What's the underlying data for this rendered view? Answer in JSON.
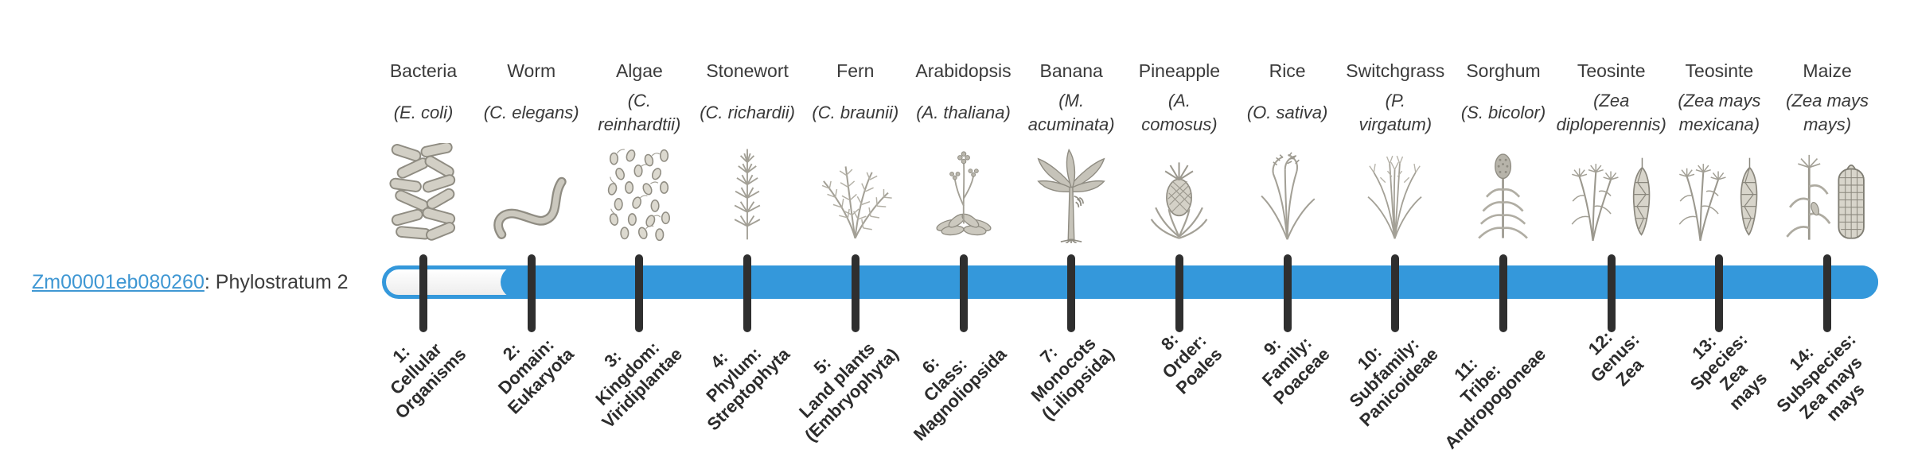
{
  "gene": {
    "id": "Zm00001eb080260",
    "separator": ": ",
    "status_text": "Phylostratum 2",
    "phylostratum": 2
  },
  "colors": {
    "accent_blue": "#3498db",
    "tick_dark": "#2f2f2f",
    "link_blue": "#3f97d3",
    "text_dark": "#3a3a3a",
    "art_gray": "#a3a096"
  },
  "organisms": [
    {
      "common": "Bacteria",
      "sci_lines": [
        "(E. coli)"
      ],
      "art": "bacteria"
    },
    {
      "common": "Worm",
      "sci_lines": [
        "(C. elegans)"
      ],
      "art": "worm"
    },
    {
      "common": "Algae",
      "sci_lines": [
        "(C.",
        "reinhardtii)"
      ],
      "art": "algae"
    },
    {
      "common": "Stonewort",
      "sci_lines": [
        "(C. richardii)"
      ],
      "art": "stonewort"
    },
    {
      "common": "Fern",
      "sci_lines": [
        "(C. braunii)"
      ],
      "art": "fern"
    },
    {
      "common": "Arabidopsis",
      "sci_lines": [
        "(A. thaliana)"
      ],
      "art": "arabidopsis"
    },
    {
      "common": "Banana",
      "sci_lines": [
        "(M.",
        "acuminata)"
      ],
      "art": "banana"
    },
    {
      "common": "Pineapple",
      "sci_lines": [
        "(A.",
        "comosus)"
      ],
      "art": "pineapple"
    },
    {
      "common": "Rice",
      "sci_lines": [
        "(O. sativa)"
      ],
      "art": "rice"
    },
    {
      "common": "Switchgrass",
      "sci_lines": [
        "(P.",
        "virgatum)"
      ],
      "art": "switchgrass"
    },
    {
      "common": "Sorghum",
      "sci_lines": [
        "(S. bicolor)"
      ],
      "art": "sorghum"
    },
    {
      "common": "Teosinte",
      "sci_lines": [
        "(Zea",
        "diploperennis)"
      ],
      "art": "teosinte-pair"
    },
    {
      "common": "Teosinte",
      "sci_lines": [
        "(Zea mays",
        "mexicana)"
      ],
      "art": "teosinte-pair"
    },
    {
      "common": "Maize",
      "sci_lines": [
        "(Zea mays",
        "mays)"
      ],
      "art": "maize-pair"
    }
  ],
  "strata": [
    {
      "lines": [
        "1:",
        "Cellular",
        "Organisms"
      ]
    },
    {
      "lines": [
        "2:",
        "Domain:",
        "Eukaryota"
      ]
    },
    {
      "lines": [
        "3:",
        "Kingdom:",
        "Viridiplantae"
      ]
    },
    {
      "lines": [
        "4:",
        "Phylum:",
        "Streptophyta"
      ]
    },
    {
      "lines": [
        "5:",
        "Land plants",
        "(Embryophyta)"
      ]
    },
    {
      "lines": [
        "6:",
        "Class:",
        "Magnoliopsida"
      ]
    },
    {
      "lines": [
        "7:",
        "Monocots",
        "(Liliopsida)"
      ]
    },
    {
      "lines": [
        "8:",
        "Order:",
        "Poales"
      ]
    },
    {
      "lines": [
        "9:",
        "Family:",
        "Poaceae"
      ]
    },
    {
      "lines": [
        "10:",
        "Subfamily:",
        "Panicoideae"
      ]
    },
    {
      "lines": [
        "11:",
        "Tribe:",
        "Andropogoneae"
      ]
    },
    {
      "lines": [
        "12:",
        "Genus:",
        "Zea"
      ]
    },
    {
      "lines": [
        "13:",
        "Species:",
        "Zea",
        "mays"
      ]
    },
    {
      "lines": [
        "14:",
        "Subspecies:",
        "Zea mays",
        "mays"
      ]
    }
  ],
  "chart_data": {
    "type": "bar",
    "orientation": "horizontal",
    "title": "Zm00001eb080260: Phylostratum 2",
    "categories": [
      "1: Cellular Organisms",
      "2: Domain: Eukaryota",
      "3: Kingdom: Viridiplantae",
      "4: Phylum: Streptophyta",
      "5: Land plants (Embryophyta)",
      "6: Class: Magnoliopsida",
      "7: Monocots (Liliopsida)",
      "8: Order: Poales",
      "9: Family: Poaceae",
      "10: Subfamily: Panicoideae",
      "11: Tribe: Andropogoneae",
      "12: Genus: Zea",
      "13: Species: Zea mays",
      "14: Subspecies: Zea mays mays"
    ],
    "category_organisms": [
      "Bacteria (E. coli)",
      "Worm (C. elegans)",
      "Algae (C. reinhardtii)",
      "Stonewort (C. richardii)",
      "Fern (C. braunii)",
      "Arabidopsis (A. thaliana)",
      "Banana (M. acuminata)",
      "Pineapple (A. comosus)",
      "Rice (O. sativa)",
      "Switchgrass (P. virgatum)",
      "Sorghum (S. bicolor)",
      "Teosinte (Zea diploperennis)",
      "Teosinte (Zea mays mexicana)",
      "Maize (Zea mays mays)"
    ],
    "series": [
      {
        "name": "Zm00001eb080260",
        "phylostratum": 2,
        "bar_filled_strata_span": [
          2,
          14
        ]
      }
    ],
    "axis_range_strata": [
      1,
      14
    ],
    "grid": false,
    "legend": "none"
  }
}
